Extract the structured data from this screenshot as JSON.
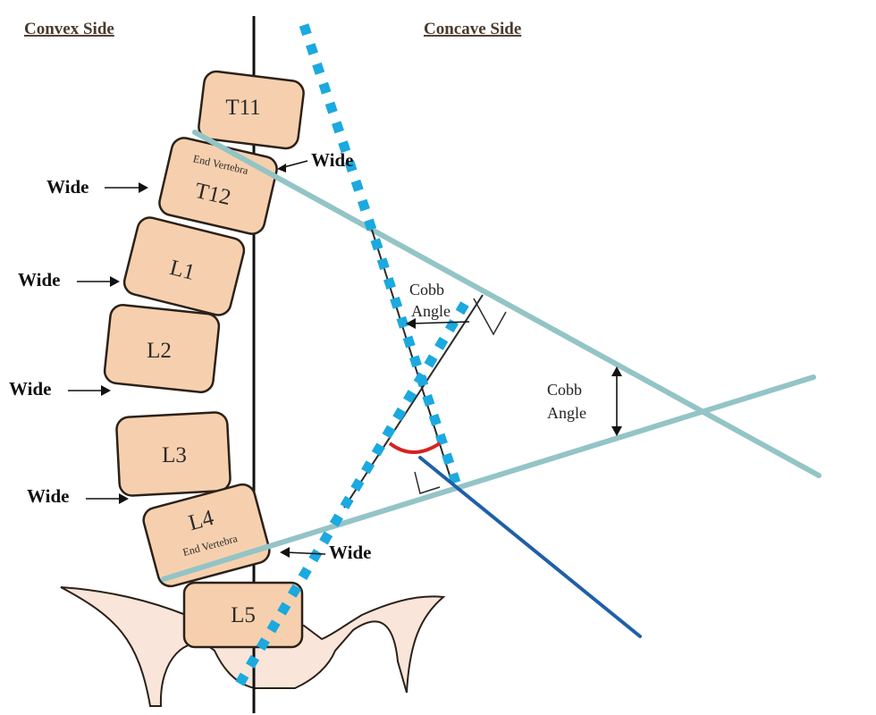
{
  "headers": {
    "convex": "Convex Side",
    "concave": "Concave Side"
  },
  "vertebrae": [
    {
      "id": "t11",
      "label": "T11"
    },
    {
      "id": "t12",
      "label": "T12",
      "sublabel": "End Vertebra"
    },
    {
      "id": "l1",
      "label": "L1"
    },
    {
      "id": "l2",
      "label": "L2"
    },
    {
      "id": "l3",
      "label": "L3"
    },
    {
      "id": "l4",
      "label": "L4",
      "sublabel": "End Vertebra"
    },
    {
      "id": "l5",
      "label": "L5"
    }
  ],
  "wide_label": "Wide",
  "cobb": {
    "line1": "Cobb",
    "line2": "Angle"
  },
  "colors": {
    "bone_fill": "#f6d0ae",
    "bone_stroke": "#2b2118",
    "pelvis_fill": "#f9e5da",
    "endplate_line": "#93c4c6",
    "dotted_line": "#1ba9df",
    "perpendicular_line": "#2a2a2a",
    "normal_line": "#1f5fa8",
    "angle_arc": "#d42323"
  }
}
